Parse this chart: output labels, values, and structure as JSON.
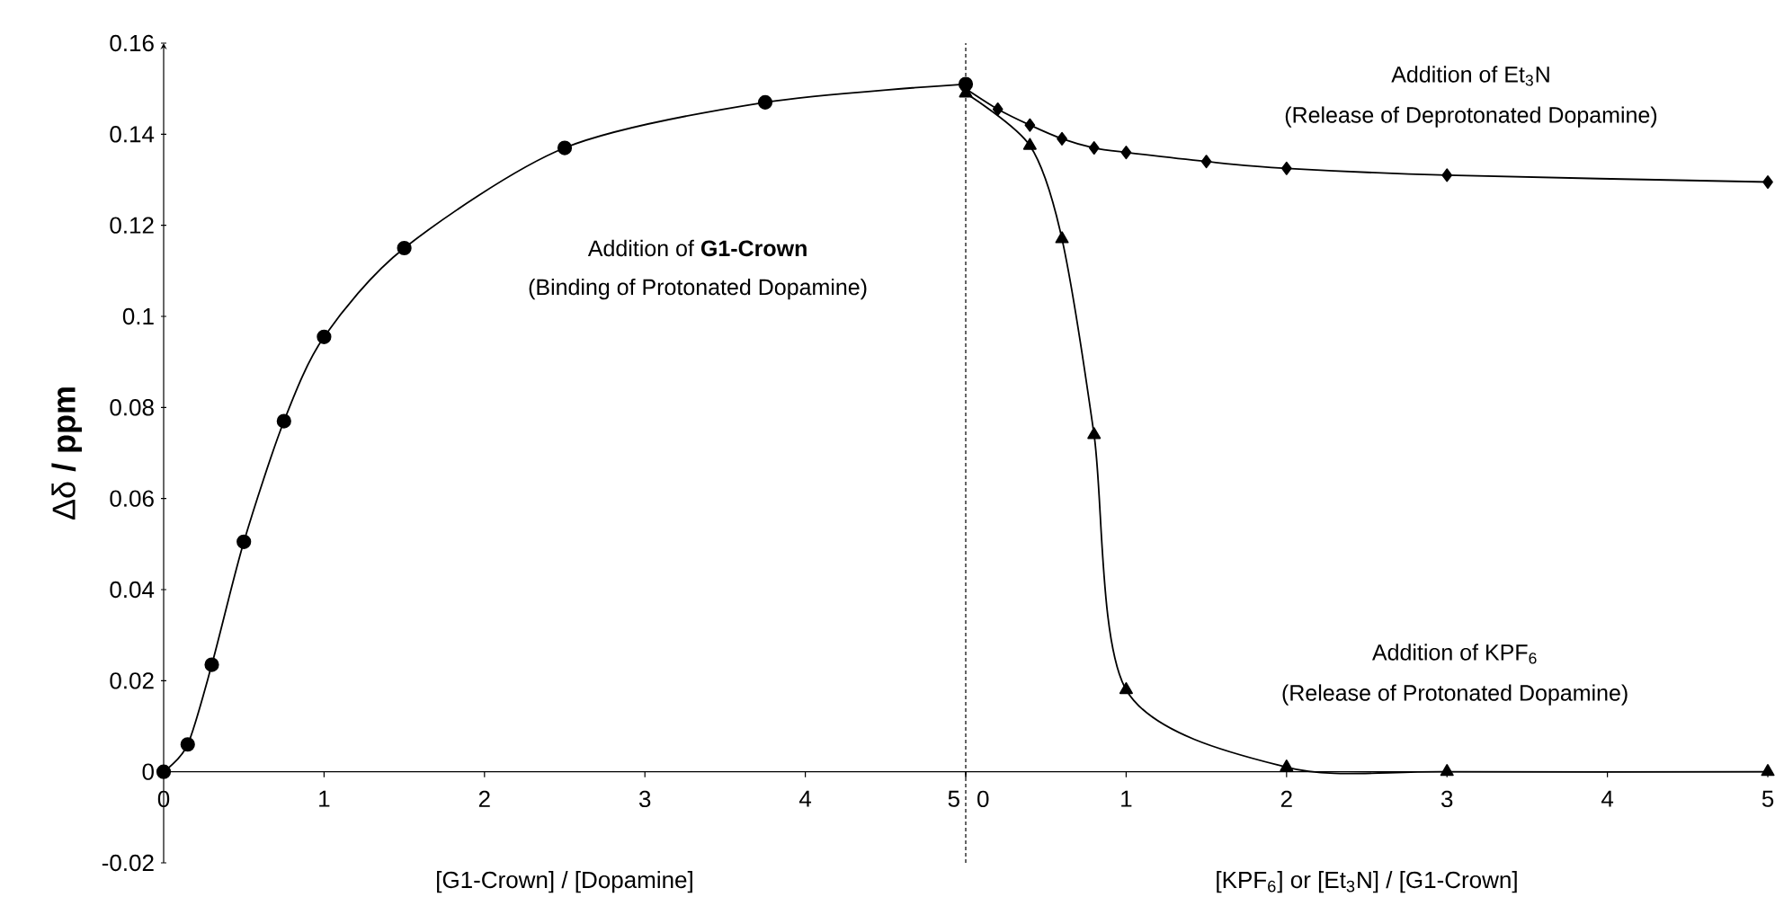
{
  "chart_data": [
    {
      "type": "line",
      "xlabel": "[G1-Crown] / [Dopamine]",
      "ylabel": "Δδ **/ ppm**",
      "xlim": [
        0,
        5
      ],
      "ylim": [
        -0.02,
        0.16
      ],
      "xticks": [
        0,
        1,
        2,
        3,
        4,
        5
      ],
      "yticks": [
        -0.02,
        0,
        0.02,
        0.04,
        0.06,
        0.08,
        0.1,
        0.12,
        0.14,
        0.16
      ],
      "x": [
        0,
        0.15,
        0.3,
        0.5,
        0.75,
        1,
        1.5,
        2.5,
        3.75,
        5
      ],
      "series": [
        {
          "color": "#000000",
          "marker": "circle",
          "values": [
            0,
            0.006,
            0.0235,
            0.0505,
            0.077,
            0.0955,
            0.115,
            0.137,
            0.147,
            0.151
          ]
        }
      ],
      "ref_lines": [
        {
          "axis": "x",
          "value": 5,
          "line_style": "dashed"
        }
      ],
      "annotations": [
        "Addition of **G1-Crown**",
        "(Binding of Protonated Dopamine)"
      ]
    },
    {
      "type": "line",
      "xlabel": "[KPF$_{6}$] or [Et$_{3}$N] / [G1-Crown]",
      "tick_labels": "x",
      "xlim": [
        0,
        5
      ],
      "ylim": [
        -0.02,
        0.16
      ],
      "xticks": [
        0,
        1,
        2,
        3,
        4,
        5
      ],
      "series": [
        {
          "color": "#000000",
          "marker": "diamond",
          "x": [
            0,
            0.2,
            0.4,
            0.6,
            0.8,
            1,
            1.5,
            2,
            3,
            5
          ],
          "values": [
            0.15,
            0.1455,
            0.142,
            0.139,
            0.137,
            0.136,
            0.134,
            0.1325,
            0.131,
            0.1295
          ]
        },
        {
          "color": "#000000",
          "marker": "triangle",
          "x": [
            0,
            0.4,
            0.6,
            0.8,
            1,
            2,
            3,
            5
          ],
          "values": [
            0.149,
            0.1375,
            0.117,
            0.074,
            0.018,
            0.001,
            0,
            0
          ]
        }
      ],
      "annotations": [
        "Addition of Et$_{3}$N",
        "(Release of Deprotonated Dopamine)",
        "Addition of KPF$_{6}$",
        "(Release of Protonated Dopamine)"
      ]
    }
  ]
}
